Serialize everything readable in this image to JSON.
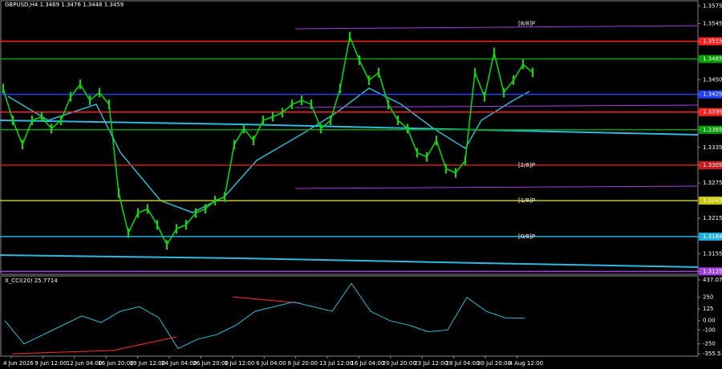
{
  "header": {
    "symbol_line": "GBPUSD,H4  1.3469 1.3476 1.3448 1.3459"
  },
  "chart_data": {
    "type": "line",
    "color": "#00e000",
    "ylim": [
      1.312,
      1.3585
    ],
    "yticks": [
      1.3575,
      1.3545,
      1.3515,
      1.3485,
      {
        "value": 1.345,
        "label": "1.3450"
      },
      1.3425,
      1.3395,
      1.3365,
      1.3335,
      1.3305,
      1.3275,
      1.3245,
      1.3215,
      1.3184,
      1.3155,
      1.3125
    ],
    "values": [
      1.3435,
      1.3381,
      1.334,
      1.3381,
      1.3387,
      1.3367,
      1.3381,
      1.3421,
      1.3442,
      1.3415,
      1.3428,
      1.3408,
      1.3258,
      1.319,
      1.3224,
      1.3231,
      1.3204,
      1.317,
      1.3197,
      1.3204,
      1.3224,
      1.3231,
      1.3245,
      1.3251,
      1.334,
      1.3367,
      1.3347,
      1.3381,
      1.3387,
      1.3394,
      1.3408,
      1.3415,
      1.3408,
      1.3367,
      1.3381,
      1.3435,
      1.3523,
      1.3483,
      1.3449,
      1.3462,
      1.3408,
      1.3381,
      1.3367,
      1.3326,
      1.3319,
      1.3347,
      1.3299,
      1.3292,
      1.3313,
      1.3462,
      1.3421,
      1.3496,
      1.3428,
      1.3449,
      1.3476,
      1.3462
    ],
    "levels": [
      {
        "value": 1.3515,
        "color": "#ff2020"
      },
      {
        "value": 1.3485,
        "color": "#00a000"
      },
      {
        "value": 1.3425,
        "color": "#2040ff"
      },
      {
        "value": 1.3395,
        "color": "#ff2020"
      },
      {
        "value": 1.3365,
        "color": "#00a000"
      },
      {
        "value": 1.3305,
        "color": "#d01818"
      },
      {
        "value": 1.3245,
        "color": "#c8c800"
      },
      {
        "value": 1.3184,
        "color": "#20b0e0"
      },
      {
        "value": 1.3125,
        "color": "#a040e0"
      }
    ],
    "murrey_labels": [
      {
        "label": "[8/8]P",
        "value": 1.3545,
        "color": "#ff2020"
      },
      {
        "label": "[2/8]P",
        "value": 1.3305,
        "color": "#ff2020"
      },
      {
        "label": "[1/8]P",
        "value": 1.3245,
        "color": "#c8c800"
      },
      {
        "label": "[0/8]P",
        "value": 1.3184,
        "color": "#20b0e0"
      }
    ],
    "time_labels": [
      "4 Jun 2026",
      "9 Jun 12:00",
      "12 Jun 04:00",
      "16 Jun 20:00",
      "19 Jun 12:00",
      "24 Jun 04:00",
      "26 Jun 20:00",
      "1 Jul 12:00",
      "6 Jul 04:00",
      "8 Jul 20:00",
      "13 Jul 12:00",
      "16 Jul 04:00",
      "20 Jul 20:00",
      "23 Jul 12:00",
      "28 Jul 04:00",
      "30 Jul 20:00",
      "4 Aug 12:00"
    ]
  },
  "indicator": {
    "title": "X_CCI(20) 25.7714",
    "color": "#30b8d0",
    "ylim": [
      -390,
      471
    ],
    "yticks": [
      437.0745,
      250,
      125,
      {
        "value": 0,
        "label": "0.00"
      },
      -100,
      -250,
      -355.5132
    ],
    "values": [
      0,
      -250,
      -150,
      -50,
      50,
      -20,
      100,
      150,
      30,
      -300,
      -200,
      -150,
      -50,
      100,
      150,
      200,
      150,
      100,
      400,
      100,
      0,
      -50,
      -120,
      -100,
      250,
      100,
      30,
      25.7714
    ]
  }
}
